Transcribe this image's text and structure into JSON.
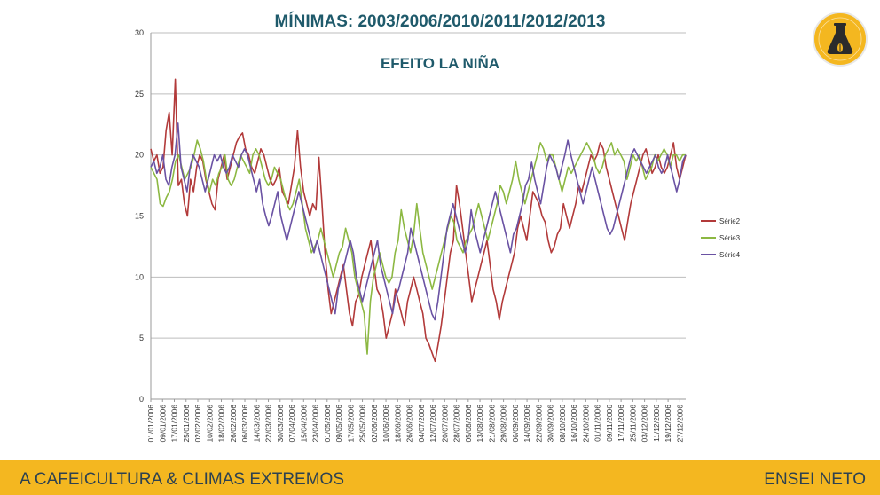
{
  "chart_data": {
    "type": "line",
    "title": "MÍNIMAS: 2003/2006/2010/2011/2012/2013",
    "subtitle": "EFEITO LA NIÑA",
    "xlabel": "",
    "ylabel": "",
    "ylim": [
      0,
      30
    ],
    "yticks": [
      0,
      5,
      10,
      15,
      20,
      25,
      30
    ],
    "grid": true,
    "legend_position": "right",
    "x_tick_labels": [
      "01/01/2006",
      "09/01/2006",
      "17/01/2006",
      "25/01/2006",
      "02/02/2006",
      "10/02/2006",
      "18/02/2006",
      "26/02/2006",
      "06/03/2006",
      "14/03/2006",
      "22/03/2006",
      "30/03/2006",
      "07/04/2006",
      "15/04/2006",
      "23/04/2006",
      "01/05/2006",
      "09/05/2006",
      "17/05/2006",
      "25/05/2006",
      "02/06/2006",
      "10/06/2006",
      "18/06/2006",
      "26/06/2006",
      "04/07/2006",
      "12/07/2006",
      "20/07/2006",
      "28/07/2006",
      "05/08/2006",
      "13/08/2006",
      "21/08/2006",
      "29/08/2006",
      "06/09/2006",
      "14/09/2006",
      "22/09/2006",
      "30/09/2006",
      "08/10/2006",
      "16/10/2006",
      "24/10/2006",
      "01/11/2006",
      "09/11/2006",
      "17/11/2006",
      "25/11/2006",
      "03/12/2006",
      "11/12/2006",
      "19/12/2006",
      "27/12/2006"
    ],
    "x_tick_day_interval": 8,
    "days": 365,
    "series": [
      {
        "name": "Série2",
        "color": "#b23a3a",
        "values": [
          20.5,
          19.5,
          20,
          18.5,
          19,
          22,
          23.5,
          20,
          26.2,
          17.5,
          18,
          16,
          15,
          18,
          17,
          19,
          20,
          19.5,
          18,
          17,
          16,
          15.5,
          18,
          19,
          20,
          18,
          19,
          20,
          21,
          21.5,
          21.8,
          20.5,
          20,
          19,
          18.5,
          19.5,
          20.5,
          20,
          19,
          18,
          17.5,
          18,
          19,
          17,
          16.5,
          16,
          17.5,
          19,
          22,
          19,
          17,
          16,
          15,
          16,
          15.5,
          19.8,
          16,
          12,
          9,
          7,
          8,
          9,
          10,
          11,
          9,
          7,
          6,
          8,
          8.5,
          10,
          11,
          12,
          13,
          11,
          9,
          8.5,
          7,
          5,
          6,
          7,
          9,
          8,
          7,
          6,
          8,
          9,
          10,
          9,
          8,
          7,
          5,
          4.5,
          3.8,
          3.1,
          4.5,
          6,
          8,
          10,
          12,
          13,
          17.5,
          16,
          14,
          12,
          10,
          8,
          9,
          10,
          11,
          12,
          13,
          11,
          9,
          8,
          6.5,
          8,
          9,
          10,
          11,
          12,
          14,
          15,
          14,
          13,
          15,
          17,
          16.5,
          16,
          15,
          14.5,
          13,
          12,
          12.5,
          13.5,
          14,
          16,
          15,
          14,
          15,
          16,
          17.5,
          17,
          18,
          19,
          20,
          19.5,
          20,
          21,
          20.5,
          19,
          18,
          17,
          16,
          15,
          14,
          13,
          14.5,
          16,
          17,
          18,
          19,
          20,
          20.5,
          19.5,
          18.5,
          19,
          20,
          19,
          18.5,
          19,
          20,
          21,
          19,
          18,
          19,
          20
        ],
        "sample_note": "values sampled every ~2 days"
      },
      {
        "name": "Série3",
        "color": "#8cb842",
        "values": [
          19,
          18.5,
          18,
          16,
          15.8,
          16.5,
          17,
          18,
          19.5,
          20,
          19,
          18,
          18.5,
          19,
          20,
          21.2,
          20.5,
          19.5,
          18,
          17,
          18,
          17.5,
          18.5,
          19,
          20,
          18,
          17.5,
          18,
          19,
          20,
          19.5,
          19,
          18.5,
          20,
          20.5,
          20,
          19,
          18,
          17.5,
          18,
          19,
          18.5,
          18,
          17,
          16,
          15.5,
          16,
          17,
          18,
          16,
          14,
          13,
          12,
          12.5,
          13,
          14,
          13,
          12,
          11,
          10,
          11,
          12,
          12.5,
          14,
          13,
          12,
          10,
          9,
          8,
          7,
          3.7,
          8,
          10,
          11,
          12,
          11,
          10,
          9.5,
          10,
          12,
          13,
          15.5,
          14,
          13,
          12,
          13.5,
          16,
          14,
          12,
          11,
          10,
          9,
          10,
          11,
          12,
          13,
          14,
          15,
          14.5,
          13,
          12.5,
          12,
          13,
          13.5,
          14,
          15,
          16,
          15,
          14,
          13,
          14,
          15,
          16,
          17.5,
          17,
          16,
          17,
          18,
          19.5,
          18,
          17,
          16,
          17,
          18,
          19,
          20,
          21,
          20.5,
          19.5,
          20,
          20,
          19,
          18,
          17,
          18,
          19,
          18.5,
          19,
          19.5,
          20,
          20.5,
          21,
          20.5,
          20,
          19,
          18.5,
          19,
          20,
          20.5,
          21,
          20,
          20.5,
          20,
          19.5,
          18,
          19,
          20,
          19.5,
          20,
          19,
          18,
          18.5,
          19,
          20,
          19.5,
          20,
          20.5,
          20,
          19,
          20,
          20,
          19.5,
          20,
          20
        ],
        "sample_note": "values sampled every ~2 days"
      },
      {
        "name": "Série4",
        "color": "#6a52a3",
        "values": [
          19,
          19.5,
          18.5,
          19,
          20,
          18,
          17.5,
          19,
          20,
          22.6,
          19,
          18,
          17,
          19,
          20,
          19.5,
          19,
          18,
          17,
          18,
          19,
          20,
          19.5,
          20,
          19,
          18.5,
          19,
          20,
          19.5,
          19,
          20,
          20.5,
          20,
          19,
          18,
          17,
          18,
          16,
          15,
          14.2,
          15,
          16,
          17,
          15,
          14,
          13,
          14,
          15,
          16,
          17,
          16,
          15,
          14,
          13,
          12,
          13,
          12,
          11,
          10,
          9,
          8,
          7,
          9,
          10,
          11,
          12,
          13,
          12,
          10,
          9,
          8,
          9,
          10,
          11,
          12,
          13,
          11,
          10,
          9,
          8,
          7,
          8.5,
          9,
          10,
          11,
          12,
          14,
          13,
          12,
          11,
          10,
          9,
          8,
          7,
          6.5,
          8,
          10,
          12,
          14,
          15,
          16,
          15,
          14,
          13,
          12,
          13,
          15.5,
          14,
          13,
          12,
          13,
          14,
          15,
          16,
          17,
          16,
          15,
          14,
          13,
          12,
          13.5,
          14,
          15,
          16,
          17.5,
          18,
          19.4,
          18,
          17,
          16,
          17.5,
          19,
          20,
          19.5,
          19,
          18,
          19,
          20,
          21.2,
          20,
          19,
          18,
          17,
          16,
          17,
          18,
          19,
          18,
          17,
          16,
          15,
          14,
          13.5,
          14,
          15,
          16,
          17,
          18,
          19,
          20,
          20.5,
          20,
          19.5,
          19,
          18.5,
          19,
          19.5,
          20,
          19,
          18.5,
          19,
          20,
          19,
          18,
          17,
          18,
          19.5,
          20
        ],
        "sample_note": "values sampled every ~2 days"
      }
    ]
  },
  "footer": {
    "left": "A CAFEICULTURA & CLIMAS EXTREMOS",
    "right": "ENSEI NETO"
  },
  "colors": {
    "title": "#1f5a6b",
    "footer_bg": "#f4b720",
    "logo_bg": "#f4b720"
  }
}
